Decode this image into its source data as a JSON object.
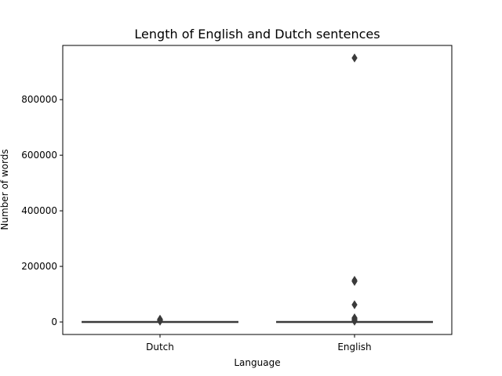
{
  "chart_data": {
    "type": "box",
    "title": "Length of English and Dutch sentences",
    "xlabel": "Language",
    "ylabel": "Number of words",
    "categories": [
      "Dutch",
      "English"
    ],
    "ylim": [
      -45000,
      995000
    ],
    "yticks": [
      0,
      200000,
      400000,
      600000,
      800000
    ],
    "ytick_labels": [
      "0",
      "200000",
      "400000",
      "600000",
      "800000"
    ],
    "grid": false,
    "box_color": "#3a3a3a",
    "series": [
      {
        "category": "Dutch",
        "min": 0,
        "q1": 0,
        "median": 0,
        "q3": 0,
        "max": 0,
        "outliers": [
          4000,
          6000,
          8000,
          9000,
          10000,
          3000
        ]
      },
      {
        "category": "English",
        "min": 0,
        "q1": 0,
        "median": 0,
        "q3": 0,
        "max": 0,
        "outliers": [
          950000,
          150000,
          146000,
          62000,
          15000,
          12000,
          9000,
          6000,
          3000
        ]
      }
    ]
  }
}
